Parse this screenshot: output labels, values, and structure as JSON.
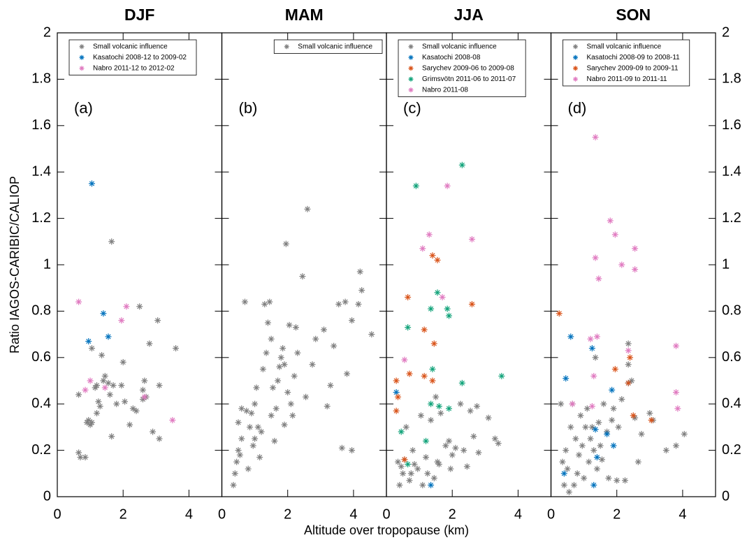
{
  "xlabel": "Altitude over tropopause (km)",
  "ylabel": "Ratio IAGOS-CARIBIC/CALIOP",
  "chart_data": [
    {
      "type": "scatter",
      "title": "DJF",
      "annotation": "(a)",
      "xlim": [
        0,
        5
      ],
      "ylim": [
        0,
        2
      ],
      "xticks": [
        0,
        2,
        4
      ],
      "yticks": [
        0,
        0.2,
        0.4,
        0.6,
        0.8,
        1,
        1.2,
        1.4,
        1.6,
        1.8,
        2
      ],
      "ytick_label_side": "left",
      "legend": "upper left",
      "series": [
        {
          "name": "Small volcanic influence",
          "color": "#7f7f7f",
          "x": [
            0.65,
            0.7,
            0.85,
            0.65,
            0.9,
            0.95,
            1.0,
            1.05,
            1.05,
            1.15,
            1.2,
            1.2,
            1.25,
            1.3,
            1.35,
            1.4,
            1.45,
            1.55,
            1.6,
            1.65,
            1.65,
            1.7,
            1.95,
            2.0,
            2.05,
            2.2,
            2.3,
            2.4,
            2.5,
            2.6,
            2.65,
            2.8,
            2.9,
            2.7,
            3.05,
            3.1,
            3.1,
            3.6,
            2.6,
            1.8
          ],
          "values": [
            0.19,
            0.17,
            0.17,
            0.44,
            0.32,
            0.33,
            0.31,
            0.32,
            0.64,
            0.47,
            0.48,
            0.36,
            0.41,
            0.39,
            0.61,
            0.5,
            0.52,
            0.49,
            0.44,
            0.26,
            1.1,
            0.48,
            0.48,
            0.58,
            0.41,
            0.31,
            0.38,
            0.37,
            0.82,
            0.46,
            0.5,
            0.66,
            0.28,
            0.43,
            0.76,
            0.48,
            0.25,
            0.64,
            0.42,
            0.4
          ]
        },
        {
          "name": "Kasatochi 2008-12 to 2009-02",
          "color": "#0072bd",
          "x": [
            1.05,
            0.95,
            1.4,
            1.55
          ],
          "values": [
            1.35,
            0.67,
            0.79,
            0.69
          ]
        },
        {
          "name": "Nabro 2011-12 to 2012-02",
          "color": "#e07ac0",
          "x": [
            0.65,
            0.85,
            1.0,
            1.45,
            1.95,
            2.1,
            2.65,
            3.5
          ],
          "values": [
            0.84,
            0.46,
            0.5,
            0.47,
            0.76,
            0.82,
            0.43,
            0.33
          ]
        }
      ]
    },
    {
      "type": "scatter",
      "title": "MAM",
      "annotation": "(b)",
      "xlim": [
        0,
        5
      ],
      "ylim": [
        0,
        2
      ],
      "xticks": [
        0,
        2,
        4
      ],
      "yticks": [
        0,
        0.2,
        0.4,
        0.6,
        0.8,
        1,
        1.2,
        1.4,
        1.6,
        1.8,
        2
      ],
      "legend": "upper right",
      "series": [
        {
          "name": "Small volcanic influence",
          "color": "#7f7f7f",
          "x": [
            0.35,
            0.4,
            0.45,
            0.5,
            0.5,
            0.55,
            0.6,
            0.6,
            0.7,
            0.75,
            0.8,
            0.85,
            0.9,
            0.95,
            1.0,
            1.0,
            1.05,
            1.1,
            1.15,
            1.2,
            1.25,
            1.3,
            1.35,
            1.4,
            1.45,
            1.5,
            1.5,
            1.55,
            1.6,
            1.65,
            1.7,
            1.75,
            1.8,
            1.85,
            1.9,
            1.95,
            1.9,
            2.0,
            2.05,
            2.1,
            2.15,
            2.2,
            2.25,
            2.3,
            2.45,
            2.55,
            2.6,
            2.75,
            2.85,
            3.1,
            3.2,
            3.3,
            3.4,
            3.55,
            3.65,
            3.75,
            3.8,
            3.95,
            3.95,
            4.15,
            4.2,
            4.25,
            4.55
          ],
          "values": [
            0.05,
            0.1,
            0.15,
            0.2,
            0.32,
            0.18,
            0.25,
            0.38,
            0.84,
            0.37,
            0.12,
            0.3,
            0.36,
            0.22,
            0.4,
            0.25,
            0.47,
            0.3,
            0.17,
            0.28,
            0.55,
            0.83,
            0.62,
            0.75,
            0.84,
            0.35,
            0.68,
            0.47,
            0.24,
            0.38,
            0.5,
            0.56,
            0.6,
            0.64,
            0.57,
            1.09,
            0.31,
            0.45,
            0.74,
            0.4,
            0.35,
            0.52,
            0.73,
            0.62,
            0.95,
            0.43,
            1.24,
            0.57,
            0.68,
            0.72,
            0.39,
            0.48,
            0.65,
            0.83,
            0.21,
            0.84,
            0.53,
            0.76,
            0.2,
            0.83,
            0.97,
            0.89,
            0.7
          ]
        }
      ]
    },
    {
      "type": "scatter",
      "title": "JJA",
      "annotation": "(c)",
      "xlim": [
        0,
        5
      ],
      "ylim": [
        0,
        2
      ],
      "xticks": [
        0,
        2,
        4
      ],
      "yticks": [
        0,
        0.2,
        0.4,
        0.6,
        0.8,
        1,
        1.2,
        1.4,
        1.6,
        1.8,
        2
      ],
      "legend": "upper left",
      "series": [
        {
          "name": "Small volcanic influence",
          "color": "#7f7f7f",
          "x": [
            0.35,
            0.4,
            0.45,
            0.5,
            0.55,
            0.6,
            0.7,
            0.8,
            0.85,
            0.95,
            1.05,
            1.1,
            1.2,
            1.25,
            1.35,
            1.45,
            1.5,
            1.55,
            1.65,
            1.8,
            1.9,
            1.95,
            2.0,
            2.1,
            2.25,
            2.35,
            2.45,
            2.55,
            2.65,
            2.75,
            2.8,
            3.1,
            3.3,
            3.4,
            1.6,
            0.75
          ],
          "values": [
            0.15,
            0.05,
            0.13,
            0.1,
            0.16,
            0.3,
            0.07,
            0.2,
            0.14,
            0.12,
            0.35,
            0.05,
            0.17,
            0.1,
            0.33,
            0.08,
            0.43,
            0.15,
            0.36,
            0.22,
            0.24,
            0.12,
            0.18,
            0.21,
            0.4,
            0.2,
            0.13,
            0.37,
            0.26,
            0.39,
            0.19,
            0.34,
            0.25,
            0.23,
            0.14,
            0.1
          ]
        },
        {
          "name": "Kasatochi 2008-08",
          "color": "#0072bd",
          "x": [
            0.3,
            1.35
          ],
          "values": [
            0.45,
            0.05
          ]
        },
        {
          "name": "Sarychev 2009-06 to 2009-08",
          "color": "#d95319",
          "x": [
            0.3,
            0.35,
            0.3,
            0.55,
            0.65,
            0.7,
            1.15,
            1.15,
            1.4,
            1.45,
            1.55,
            1.4,
            2.6
          ],
          "values": [
            0.5,
            0.43,
            0.37,
            0.16,
            0.86,
            0.53,
            0.72,
            0.52,
            1.04,
            0.66,
            1.02,
            0.5,
            0.83
          ]
        },
        {
          "name": "Grimsvötn 2011-06 to 2011-07",
          "color": "#12a37a",
          "x": [
            0.45,
            0.65,
            0.65,
            0.9,
            1.2,
            1.35,
            1.35,
            1.4,
            1.55,
            1.6,
            1.85,
            1.9,
            1.9,
            2.3,
            2.3,
            3.5
          ],
          "values": [
            0.28,
            0.73,
            0.14,
            1.34,
            0.24,
            0.81,
            0.4,
            0.55,
            0.88,
            0.39,
            0.81,
            0.78,
            0.38,
            1.43,
            0.49,
            0.52
          ]
        },
        {
          "name": "Nabro 2011-08",
          "color": "#e07ac0",
          "x": [
            0.55,
            1.1,
            1.3,
            1.7,
            1.85,
            2.6
          ],
          "values": [
            0.59,
            1.07,
            1.13,
            0.86,
            1.34,
            1.11
          ]
        }
      ]
    },
    {
      "type": "scatter",
      "title": "SON",
      "annotation": "(d)",
      "xlim": [
        0,
        5
      ],
      "ylim": [
        0,
        2
      ],
      "xticks": [
        0,
        2,
        4
      ],
      "yticks": [
        0,
        0.2,
        0.4,
        0.6,
        0.8,
        1,
        1.2,
        1.4,
        1.6,
        1.8,
        2
      ],
      "ytick_label_side": "right",
      "legend": "upper left",
      "series": [
        {
          "name": "Small volcanic influence",
          "color": "#7f7f7f",
          "x": [
            0.3,
            0.35,
            0.4,
            0.45,
            0.5,
            0.55,
            0.6,
            0.65,
            0.75,
            0.8,
            0.85,
            0.9,
            0.95,
            1.0,
            1.05,
            1.1,
            1.15,
            1.2,
            1.3,
            1.35,
            1.4,
            1.45,
            1.5,
            1.55,
            1.6,
            1.7,
            1.75,
            1.85,
            1.9,
            2.0,
            2.05,
            2.15,
            2.25,
            2.35,
            2.35,
            2.45,
            2.55,
            2.65,
            2.75,
            3.0,
            3.1,
            3.5,
            3.8,
            4.05,
            1.25,
            0.7
          ],
          "values": [
            0.4,
            0.15,
            0.05,
            0.2,
            0.12,
            0.02,
            0.3,
            0.4,
            0.25,
            0.1,
            0.18,
            0.35,
            0.22,
            0.08,
            0.3,
            0.38,
            0.15,
            0.25,
            0.2,
            0.6,
            0.12,
            0.32,
            0.22,
            0.16,
            0.4,
            0.28,
            0.08,
            0.33,
            0.38,
            0.07,
            0.3,
            0.42,
            0.07,
            0.57,
            0.66,
            0.5,
            0.34,
            0.15,
            0.27,
            0.36,
            0.33,
            0.2,
            0.22,
            0.27,
            0.3,
            0.05
          ]
        },
        {
          "name": "Kasatochi 2008-09 to 2008-11",
          "color": "#0072bd",
          "x": [
            0.4,
            0.45,
            0.6,
            1.25,
            1.3,
            1.35,
            1.4,
            1.7,
            1.85,
            1.9,
            2.35
          ],
          "values": [
            0.1,
            0.51,
            0.69,
            0.64,
            0.05,
            0.29,
            0.17,
            0.27,
            0.46,
            0.22,
            0.49
          ]
        },
        {
          "name": "Sarychev 2009-09 to 2009-11",
          "color": "#d95319",
          "x": [
            0.25,
            1.95,
            2.35,
            2.4,
            2.5,
            3.05
          ],
          "values": [
            0.79,
            0.55,
            0.49,
            0.6,
            0.35,
            0.33
          ]
        },
        {
          "name": "Nabro 2011-09 to 2011-11",
          "color": "#e07ac0",
          "x": [
            0.65,
            1.2,
            1.3,
            1.35,
            1.35,
            1.45,
            1.4,
            1.8,
            1.95,
            2.15,
            2.35,
            2.55,
            2.55,
            3.8,
            3.8,
            3.85,
            1.25
          ],
          "values": [
            0.4,
            0.68,
            0.52,
            1.55,
            1.03,
            0.94,
            0.69,
            1.19,
            1.13,
            1.0,
            0.63,
            1.07,
            0.98,
            0.65,
            0.45,
            0.38,
            0.39
          ]
        }
      ]
    }
  ]
}
